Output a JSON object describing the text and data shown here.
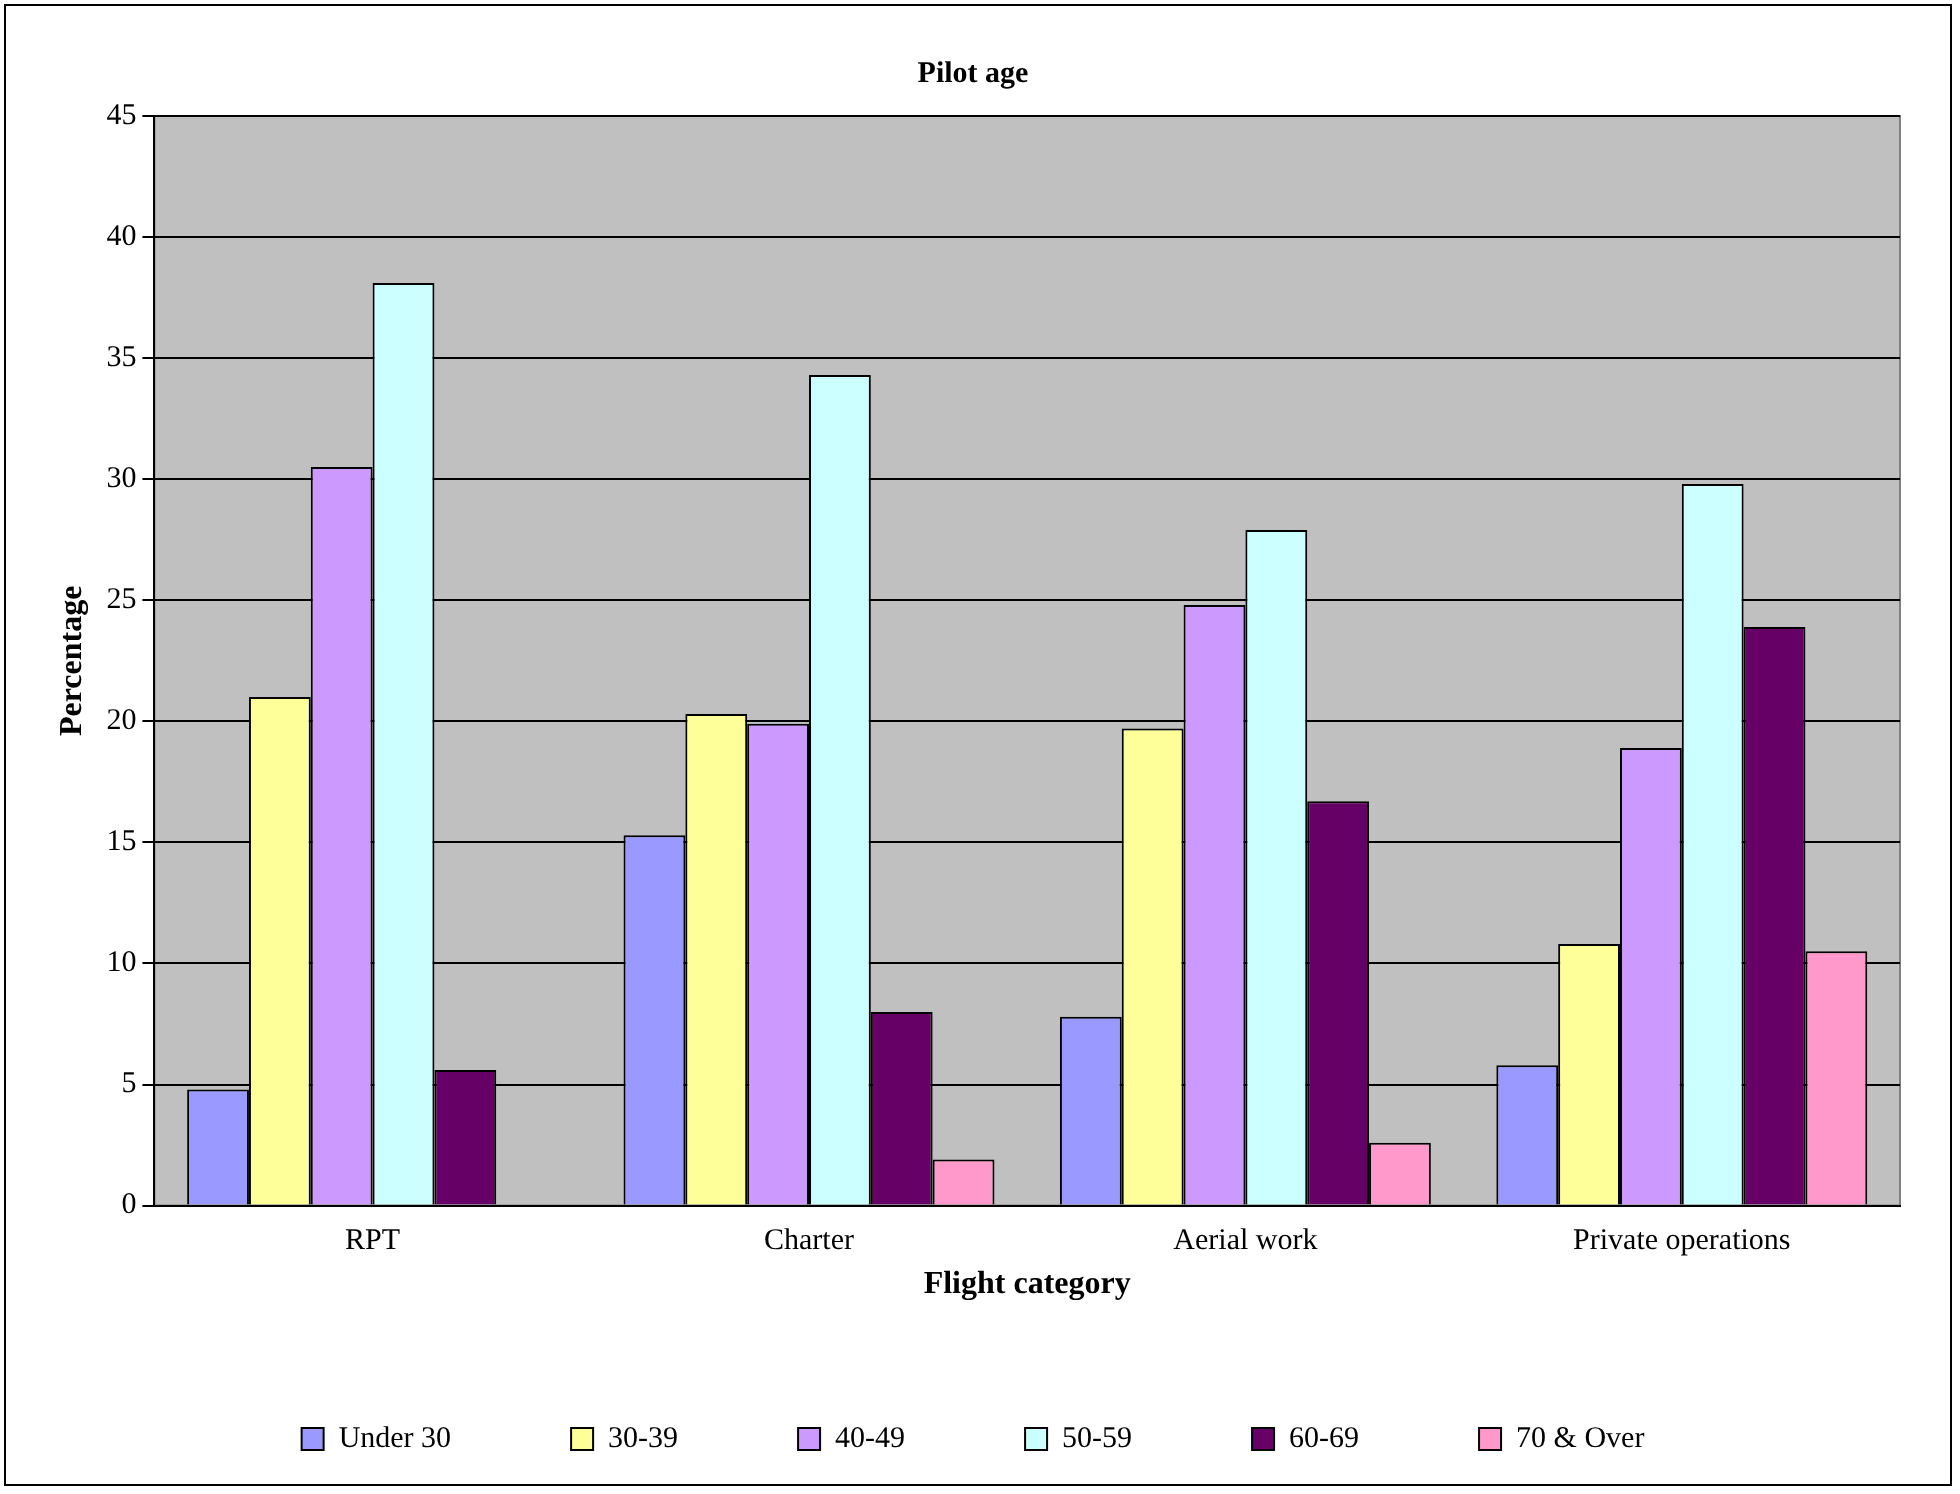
{
  "chart_data": {
    "type": "bar",
    "title": "Pilot age",
    "xlabel": "Flight category",
    "ylabel": "Percentage",
    "categories": [
      "RPT",
      "Charter",
      "Aerial work",
      "Private operations"
    ],
    "series": [
      {
        "name": "Under 30",
        "color": "#9999ff",
        "values": [
          4.8,
          15.3,
          7.8,
          5.8
        ]
      },
      {
        "name": "30-39",
        "color": "#ffff99",
        "values": [
          21.0,
          20.3,
          19.7,
          10.8
        ]
      },
      {
        "name": "40-49",
        "color": "#cc99ff",
        "values": [
          30.5,
          19.9,
          24.8,
          18.9
        ]
      },
      {
        "name": "50-59",
        "color": "#ccffff",
        "values": [
          38.1,
          34.3,
          27.9,
          29.8
        ]
      },
      {
        "name": "60-69",
        "color": "#660066",
        "values": [
          5.6,
          8.0,
          16.7,
          23.9
        ]
      },
      {
        "name": "70 & Over",
        "color": "#ff99cc",
        "values": [
          null,
          1.9,
          2.6,
          10.5
        ]
      }
    ],
    "ylim": [
      0,
      45
    ],
    "yticks": [
      0,
      5,
      10,
      15,
      20,
      25,
      30,
      35,
      40,
      45
    ],
    "grid": "y",
    "legend": "bottom"
  }
}
